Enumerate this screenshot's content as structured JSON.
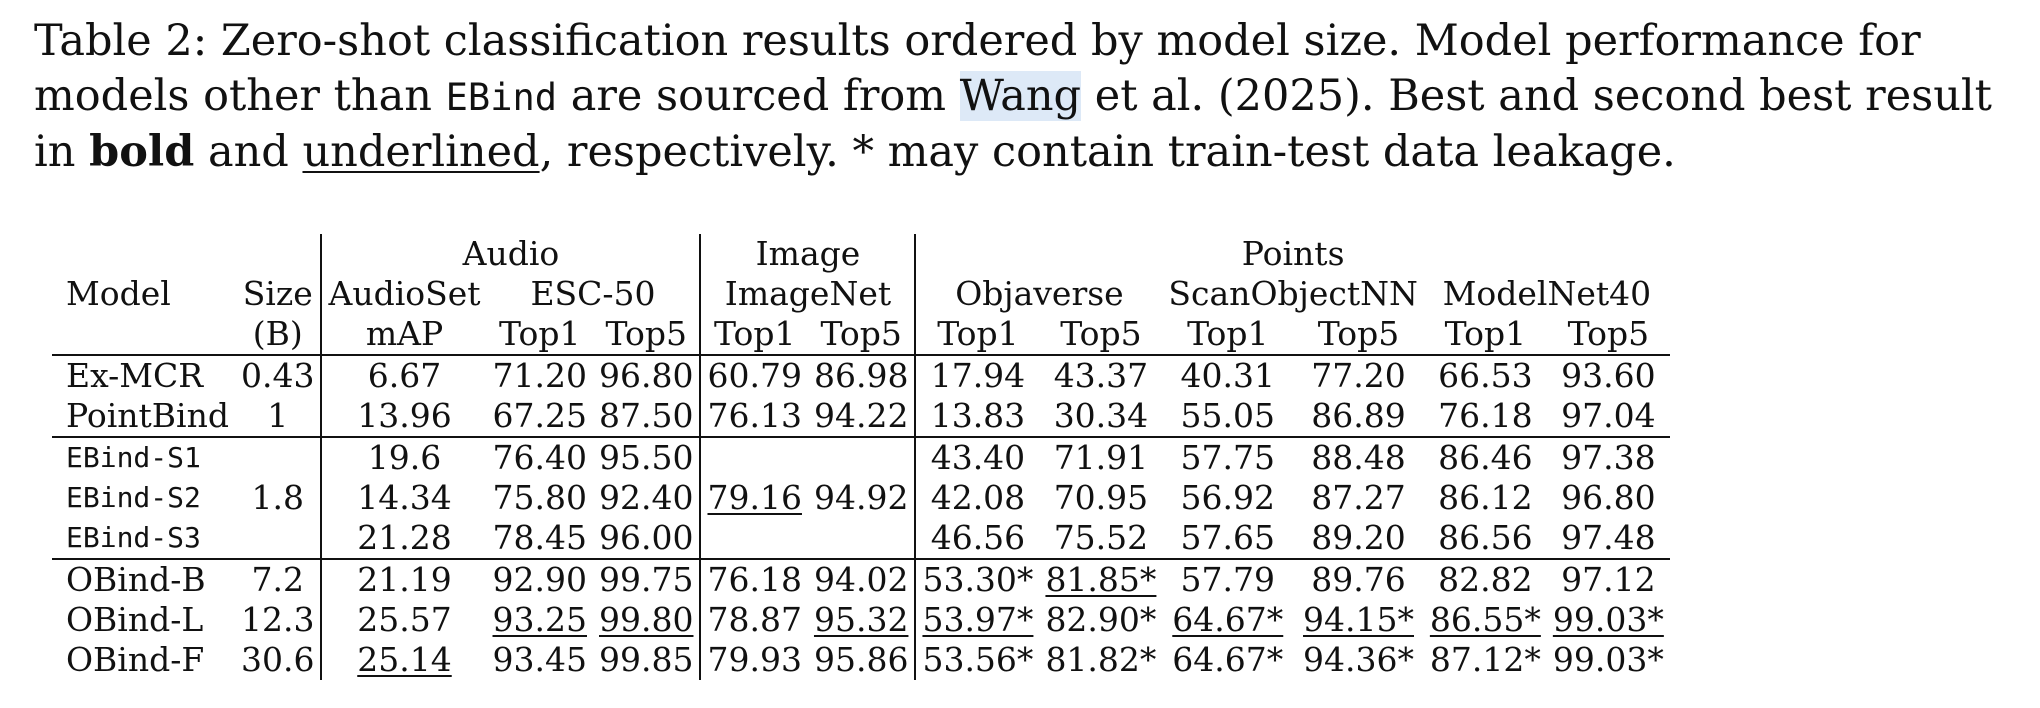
{
  "caption": {
    "line1_a": "Table 2:  Zero-shot classification results ordered by model size.  Model performance for",
    "line2_a": "models other than ",
    "line2_mono": "EBind",
    "line2_b": " are sourced from ",
    "line2_cite": "Wang",
    "line2_c": " et al. (2025). Best and second best result",
    "line3_a": "in ",
    "line3_bold": "bold",
    "line3_b": " and ",
    "line3_ul": "underlined",
    "line3_c": ", respectively. * may contain train-test data leakage."
  },
  "header": {
    "group_audio": "Audio",
    "group_image": "Image",
    "group_points": "Points",
    "model": "Model",
    "size": "Size",
    "size_unit": "(B)",
    "audioset": "AudioSet",
    "esc50": "ESC-50",
    "imagenet": "ImageNet",
    "objaverse": "Objaverse",
    "scanobjectnn": "ScanObjectNN",
    "modelnet40": "ModelNet40",
    "map": "mAP",
    "top1": "Top1",
    "top5": "Top5"
  },
  "rows": [
    {
      "model": "Ex-MCR",
      "size": "0.43",
      "vals": [
        "6.67",
        "71.20",
        "96.80",
        "60.79",
        "86.98",
        "17.94",
        "43.37",
        "40.31",
        "77.20",
        "66.53",
        "93.60"
      ]
    },
    {
      "model": "PointBind",
      "size": "1",
      "vals": [
        "13.96",
        "67.25",
        "87.50",
        "76.13",
        "94.22",
        "13.83",
        "30.34",
        "55.05",
        "86.89",
        "76.18",
        "97.04"
      ]
    },
    {
      "model": "EBind-S1",
      "size": "",
      "vals": [
        "19.6",
        "76.40",
        "95.50",
        "",
        "",
        "43.40",
        "71.91",
        "57.75",
        "88.48",
        "86.46",
        "97.38"
      ]
    },
    {
      "model": "EBind-S2",
      "size": "1.8",
      "vals": [
        "14.34",
        "75.80",
        "92.40",
        "79.16",
        "94.92",
        "42.08",
        "70.95",
        "56.92",
        "87.27",
        "86.12",
        "96.80"
      ]
    },
    {
      "model": "EBind-S3",
      "size": "",
      "vals": [
        "21.28",
        "78.45",
        "96.00",
        "",
        "",
        "46.56",
        "75.52",
        "57.65",
        "89.20",
        "86.56",
        "97.48"
      ]
    },
    {
      "model": "OBind-B",
      "size": "7.2",
      "vals": [
        "21.19",
        "92.90",
        "99.75",
        "76.18",
        "94.02",
        "53.30*",
        "81.85*",
        "57.79",
        "89.76",
        "82.82",
        "97.12"
      ]
    },
    {
      "model": "OBind-L",
      "size": "12.3",
      "vals": [
        "25.57",
        "93.25",
        "99.80",
        "78.87",
        "95.32",
        "53.97*",
        "82.90*",
        "64.67*",
        "94.15*",
        "86.55*",
        "99.03*"
      ]
    },
    {
      "model": "OBind-F",
      "size": "30.6",
      "vals": [
        "25.14",
        "93.45",
        "99.85",
        "79.93",
        "95.86",
        "53.56*",
        "81.82*",
        "64.67*",
        "94.36*",
        "87.12*",
        "99.03*"
      ]
    }
  ]
}
